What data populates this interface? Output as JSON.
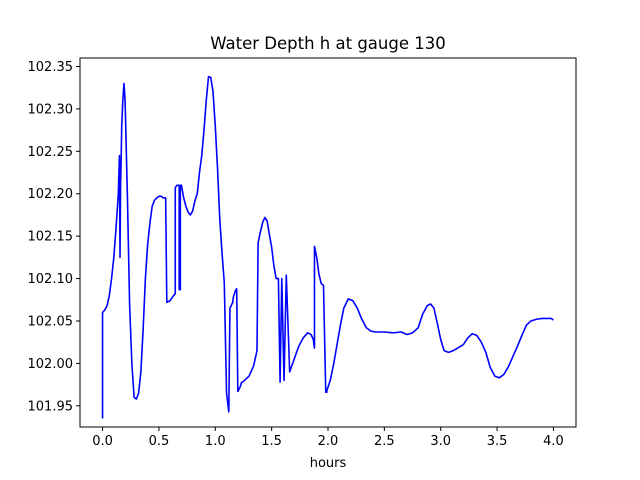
{
  "chart_data": {
    "type": "line",
    "title": "Water Depth h at gauge 130",
    "xlabel": "hours",
    "ylabel": "",
    "xlim": [
      -0.2,
      4.2
    ],
    "ylim": [
      101.925,
      102.36
    ],
    "xticks": [
      "0.0",
      "0.5",
      "1.0",
      "1.5",
      "2.0",
      "2.5",
      "3.0",
      "3.5",
      "4.0"
    ],
    "yticks": [
      "101.95",
      "102.00",
      "102.05",
      "102.10",
      "102.15",
      "102.20",
      "102.25",
      "102.30",
      "102.35"
    ],
    "grid": false,
    "series": [
      {
        "color": "#0000ff",
        "x": [
          0.0,
          0.0,
          0.02,
          0.04,
          0.06,
          0.08,
          0.1,
          0.12,
          0.14,
          0.15,
          0.155,
          0.16,
          0.165,
          0.17,
          0.18,
          0.19,
          0.2,
          0.22,
          0.24,
          0.26,
          0.28,
          0.3,
          0.32,
          0.34,
          0.36,
          0.38,
          0.4,
          0.42,
          0.44,
          0.46,
          0.48,
          0.5,
          0.52,
          0.54,
          0.56,
          0.57,
          0.57,
          0.6,
          0.63,
          0.645,
          0.645,
          0.66,
          0.68,
          0.68,
          0.69,
          0.69,
          0.7,
          0.72,
          0.74,
          0.76,
          0.78,
          0.8,
          0.82,
          0.84,
          0.86,
          0.88,
          0.9,
          0.92,
          0.94,
          0.96,
          0.98,
          1.0,
          1.02,
          1.04,
          1.06,
          1.08,
          1.1,
          1.12,
          1.13,
          1.13,
          1.155,
          1.16,
          1.17,
          1.18,
          1.19,
          1.2,
          1.22,
          1.23,
          1.23,
          1.26,
          1.3,
          1.34,
          1.37,
          1.38,
          1.38,
          1.4,
          1.42,
          1.44,
          1.46,
          1.48,
          1.5,
          1.52,
          1.54,
          1.56,
          1.575,
          1.575,
          1.59,
          1.59,
          1.61,
          1.61,
          1.63,
          1.66,
          1.7,
          1.74,
          1.78,
          1.82,
          1.85,
          1.87,
          1.88,
          1.88,
          1.9,
          1.92,
          1.94,
          1.96,
          1.98,
          1.99,
          1.99,
          2.02,
          2.05,
          2.08,
          2.11,
          2.14,
          2.18,
          2.22,
          2.26,
          2.3,
          2.34,
          2.38,
          2.42,
          2.5,
          2.58,
          2.65,
          2.7,
          2.75,
          2.8,
          2.84,
          2.88,
          2.91,
          2.94,
          2.97,
          3.0,
          3.03,
          3.07,
          3.11,
          3.15,
          3.2,
          3.24,
          3.28,
          3.32,
          3.36,
          3.4,
          3.44,
          3.48,
          3.52,
          3.56,
          3.6,
          3.64,
          3.68,
          3.72,
          3.76,
          3.8,
          3.85,
          3.9,
          3.95,
          3.98,
          4.0
        ],
        "y": [
          101.935,
          102.06,
          102.063,
          102.068,
          102.08,
          102.1,
          102.125,
          102.16,
          102.2,
          102.245,
          102.125,
          102.21,
          102.24,
          102.28,
          102.31,
          102.33,
          102.31,
          102.2,
          102.07,
          102.0,
          101.96,
          101.958,
          101.965,
          101.99,
          102.04,
          102.1,
          102.14,
          102.165,
          102.185,
          102.192,
          102.195,
          102.197,
          102.197,
          102.195,
          102.195,
          102.072,
          102.072,
          102.074,
          102.08,
          102.082,
          102.207,
          102.21,
          102.21,
          102.087,
          102.087,
          102.21,
          102.21,
          102.195,
          102.185,
          102.178,
          102.175,
          102.18,
          102.192,
          102.2,
          102.225,
          102.245,
          102.275,
          102.31,
          102.338,
          102.337,
          102.32,
          102.28,
          102.23,
          102.17,
          102.13,
          102.095,
          101.965,
          101.943,
          102.065,
          102.065,
          102.072,
          102.078,
          102.082,
          102.086,
          102.088,
          101.967,
          101.972,
          101.976,
          101.977,
          101.98,
          101.985,
          101.997,
          102.015,
          102.142,
          102.142,
          102.155,
          102.166,
          102.172,
          102.168,
          102.152,
          102.137,
          102.115,
          102.1,
          102.1,
          101.978,
          101.978,
          102.1,
          102.1,
          101.98,
          101.98,
          102.104,
          101.99,
          102.005,
          102.02,
          102.03,
          102.036,
          102.034,
          102.028,
          102.018,
          102.138,
          102.125,
          102.105,
          102.094,
          102.092,
          101.966,
          101.966,
          101.968,
          101.98,
          101.999,
          102.022,
          102.045,
          102.065,
          102.076,
          102.074,
          102.065,
          102.052,
          102.042,
          102.038,
          102.037,
          102.037,
          102.036,
          102.037,
          102.034,
          102.036,
          102.042,
          102.058,
          102.068,
          102.07,
          102.065,
          102.047,
          102.028,
          102.015,
          102.013,
          102.015,
          102.018,
          102.022,
          102.03,
          102.035,
          102.033,
          102.025,
          102.013,
          101.995,
          101.985,
          101.983,
          101.987,
          101.996,
          102.008,
          102.02,
          102.033,
          102.045,
          102.05,
          102.052,
          102.053,
          102.053,
          102.053,
          102.051
        ]
      }
    ]
  }
}
